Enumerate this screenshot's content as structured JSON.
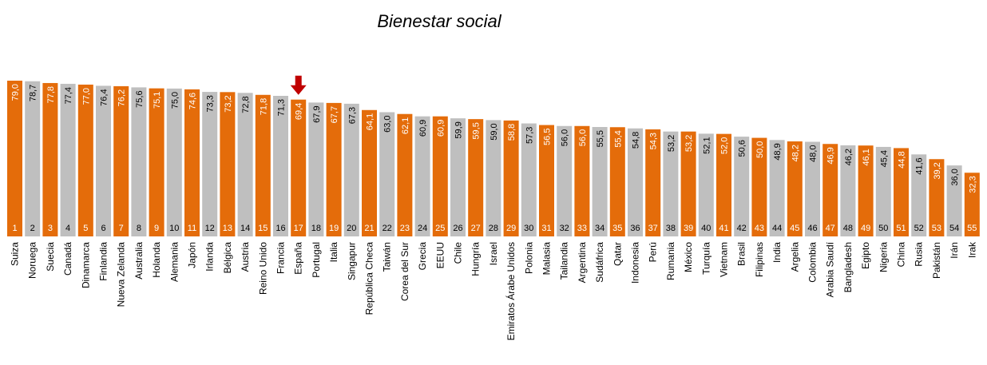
{
  "chart_data": {
    "type": "bar",
    "title": "Bienestar social",
    "xlabel": "",
    "ylabel": "",
    "ylim": [
      0,
      79
    ],
    "grid": false,
    "legend": "none",
    "highlight_category": "España",
    "colors": {
      "orange": "#e46c0a",
      "gray": "#bfbfbf",
      "arrow": "#c00000"
    },
    "categories": [
      "Suiza",
      "Noruega",
      "Suecia",
      "Canadá",
      "Dinamarca",
      "Finlandia",
      "Nueva Zelanda",
      "Australia",
      "Holanda",
      "Alemania",
      "Japón",
      "Irlanda",
      "Bélgica",
      "Austria",
      "Reino Unido",
      "Francia",
      "España",
      "Portugal",
      "Italia",
      "Singapur",
      "República Checa",
      "Taiwán",
      "Corea del Sur",
      "Grecia",
      "EEUU",
      "Chile",
      "Hungría",
      "Israel",
      "Emiratos Árabe Unidos",
      "Polonia",
      "Malasia",
      "Tailandia",
      "Argentina",
      "Sudáfrica",
      "Qatar",
      "Indonesia",
      "Perú",
      "Rumania",
      "México",
      "Turquía",
      "Vietnam",
      "Brasil",
      "Filipinas",
      "India",
      "Argelia",
      "Colombia",
      "Arabia Saudí",
      "Bangladesh",
      "Egipto",
      "Nigeria",
      "China",
      "Rusia",
      "Pakistán",
      "Irán",
      "Irak"
    ],
    "values": [
      79.0,
      78.7,
      77.8,
      77.4,
      77.0,
      76.4,
      76.2,
      75.6,
      75.1,
      75.0,
      74.6,
      73.3,
      73.2,
      72.8,
      71.8,
      71.3,
      69.4,
      67.9,
      67.7,
      67.3,
      64.1,
      63.0,
      62.1,
      60.9,
      60.9,
      59.9,
      59.5,
      59.0,
      58.8,
      57.3,
      56.5,
      56.0,
      56.0,
      55.5,
      55.4,
      54.8,
      54.3,
      53.2,
      53.2,
      52.1,
      52.0,
      50.6,
      50.0,
      48.9,
      48.2,
      48.0,
      46.9,
      46.2,
      46.1,
      45.4,
      44.8,
      41.6,
      39.2,
      36.0,
      32.3
    ],
    "value_labels": [
      "79,0",
      "78,7",
      "77,8",
      "77,4",
      "77,0",
      "76,4",
      "76,2",
      "75,6",
      "75,1",
      "75,0",
      "74,6",
      "73,3",
      "73,2",
      "72,8",
      "71,8",
      "71,3",
      "69,4",
      "67,9",
      "67,7",
      "67,3",
      "64,1",
      "63,0",
      "62,1",
      "60,9",
      "60,9",
      "59,9",
      "59,5",
      "59,0",
      "58,8",
      "57,3",
      "56,5",
      "56,0",
      "56,0",
      "55,5",
      "55,4",
      "54,8",
      "54,3",
      "53,2",
      "53,2",
      "52,1",
      "52,0",
      "50,6",
      "50,0",
      "48,9",
      "48,2",
      "48,0",
      "46,9",
      "46,2",
      "46,1",
      "45,4",
      "44,8",
      "41,6",
      "39,2",
      "36,0",
      "32,3"
    ],
    "ranks": [
      "1",
      "2",
      "3",
      "4",
      "5",
      "6",
      "7",
      "8",
      "9",
      "10",
      "11",
      "12",
      "13",
      "14",
      "15",
      "16",
      "17",
      "18",
      "19",
      "20",
      "21",
      "22",
      "23",
      "24",
      "25",
      "26",
      "27",
      "28",
      "29",
      "30",
      "31",
      "32",
      "33",
      "34",
      "35",
      "36",
      "37",
      "38",
      "39",
      "40",
      "41",
      "42",
      "43",
      "44",
      "45",
      "46",
      "47",
      "48",
      "49",
      "50",
      "51",
      "52",
      "53",
      "54",
      "55"
    ]
  }
}
